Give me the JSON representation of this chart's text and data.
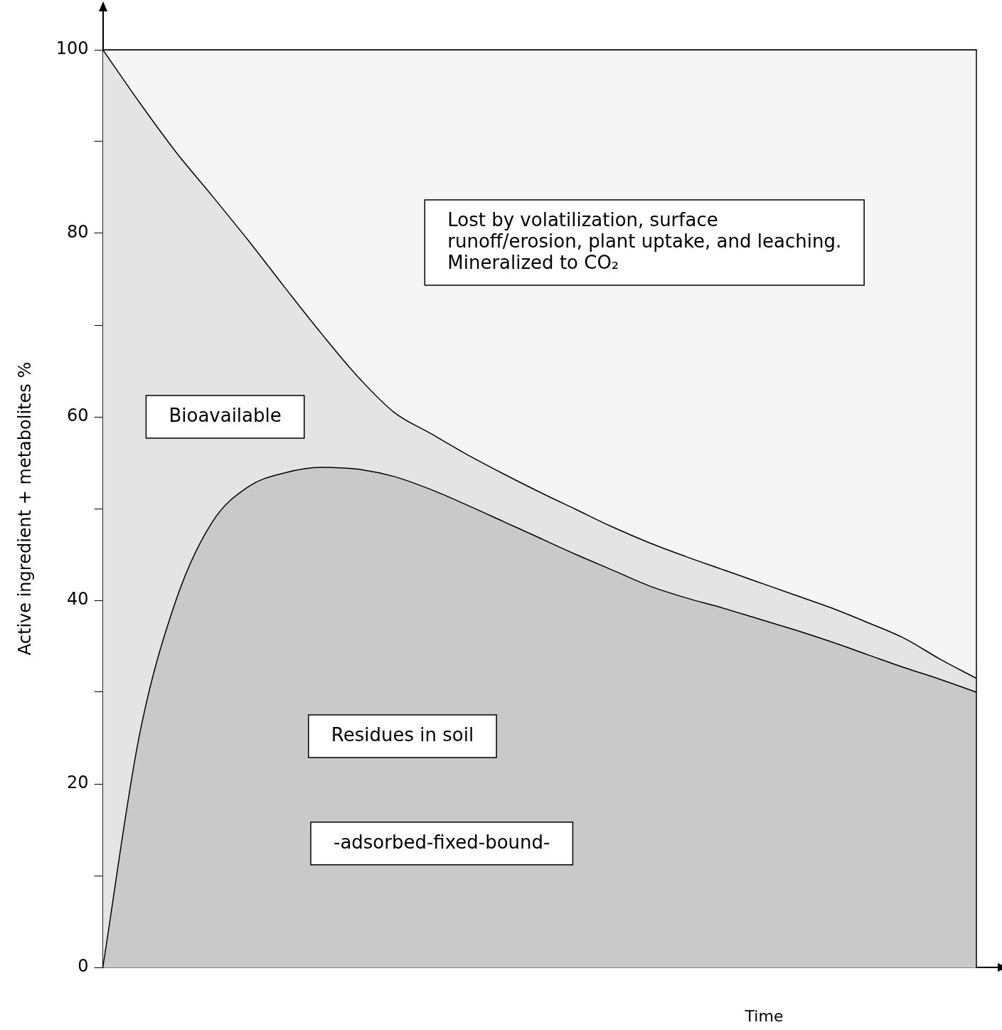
{
  "chart_data": {
    "type": "area",
    "stacked": true,
    "ylabel": "Active ingredient + metabolites %",
    "xlabel": "Time",
    "categories": [
      null,
      null,
      null,
      null,
      null,
      null,
      null,
      null,
      null,
      null,
      null,
      null,
      null,
      null,
      null,
      null,
      null,
      null,
      null,
      null,
      null,
      null,
      null,
      null,
      null
    ],
    "series": [
      {
        "name": "Residues in soil",
        "color": "#c9c9c9",
        "values": [
          0,
          25.2,
          39.9,
          48.5,
          52.4,
          53.9,
          54.5,
          54.3,
          53.5,
          52.1,
          50.4,
          48.6,
          46.8,
          45.0,
          43.3,
          41.6,
          40.3,
          39.2,
          38.0,
          36.8,
          35.5,
          34.1,
          32.7,
          31.4,
          30.0
        ]
      },
      {
        "name": "Bioavailable",
        "color": "#e4e4e4",
        "values": [
          100,
          69.1,
          49.0,
          35.6,
          26.8,
          20.2,
          14.6,
          10.1,
          7.0,
          6.1,
          5.5,
          5.2,
          5.0,
          4.9,
          4.7,
          4.7,
          4.5,
          4.2,
          4.0,
          3.8,
          3.7,
          3.5,
          3.2,
          2.2,
          1.5
        ]
      },
      {
        "name": "Lost by volatilization, surface runoff/erosion, plant uptake, and leaching.  Mineralized to CO₂",
        "color": "#f5f5f5",
        "values": [
          0,
          5.7,
          11.1,
          15.9,
          20.8,
          25.9,
          30.9,
          35.6,
          39.5,
          41.8,
          44.1,
          46.2,
          48.2,
          50.1,
          52.0,
          53.7,
          55.2,
          56.6,
          58.0,
          59.4,
          60.8,
          62.4,
          64.1,
          66.4,
          68.5
        ]
      }
    ],
    "annotations": [
      "-adsorbed-fixed-bound-"
    ],
    "ylim": [
      0,
      100
    ],
    "yticks": [
      0,
      {
        "value": 10,
        "label": null
      },
      20,
      {
        "value": 30,
        "label": null
      },
      40,
      {
        "value": 50,
        "label": null
      },
      60,
      {
        "value": 70,
        "label": null
      },
      80,
      {
        "value": 90,
        "label": null
      },
      100
    ],
    "tick_labels": "y",
    "grid": false,
    "legend": false
  }
}
